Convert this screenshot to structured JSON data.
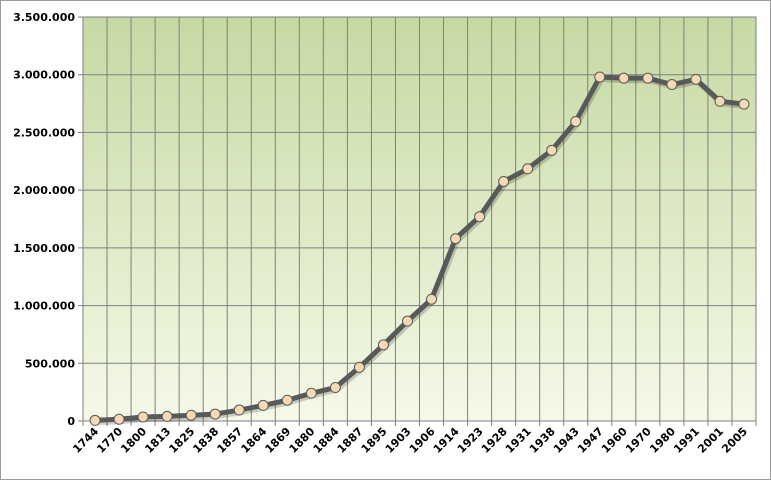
{
  "chart_data": {
    "type": "line",
    "title": "",
    "xlabel": "",
    "ylabel": "",
    "categories": [
      "1744",
      "1770",
      "1800",
      "1813",
      "1825",
      "1838",
      "1857",
      "1864",
      "1869",
      "1880",
      "1884",
      "1887",
      "1895",
      "1903",
      "1906",
      "1914",
      "1923",
      "1928",
      "1931",
      "1938",
      "1943",
      "1947",
      "1960",
      "1970",
      "1980",
      "1991",
      "2001",
      "2005"
    ],
    "series": [
      {
        "values": [
          5000,
          15000,
          35000,
          40000,
          50000,
          60000,
          95000,
          135000,
          180000,
          240000,
          290000,
          465000,
          660000,
          865000,
          1055000,
          1580000,
          1770000,
          2075000,
          2185000,
          2345000,
          2595000,
          2980000,
          2970000,
          2970000,
          2915000,
          2960000,
          2770000,
          2745000
        ]
      }
    ],
    "ylim": [
      0,
      3500000
    ],
    "yticks": [
      0,
      500000,
      1000000,
      1500000,
      2000000,
      2500000,
      3000000,
      3500000
    ],
    "ytick_labels": [
      "0",
      "500.000",
      "1.000.000",
      "1.500.000",
      "2.000.000",
      "2.500.000",
      "3.000.000",
      "3.500.000"
    ],
    "grid": true,
    "legend": "none",
    "colors": {
      "line": "#595959",
      "marker_fill": "#f5d9b4",
      "marker_stroke": "#595959",
      "plot_bg_top": "#c6d9a3",
      "plot_bg_bottom": "#f5f9e8",
      "grid": "#7f7f7f"
    }
  }
}
